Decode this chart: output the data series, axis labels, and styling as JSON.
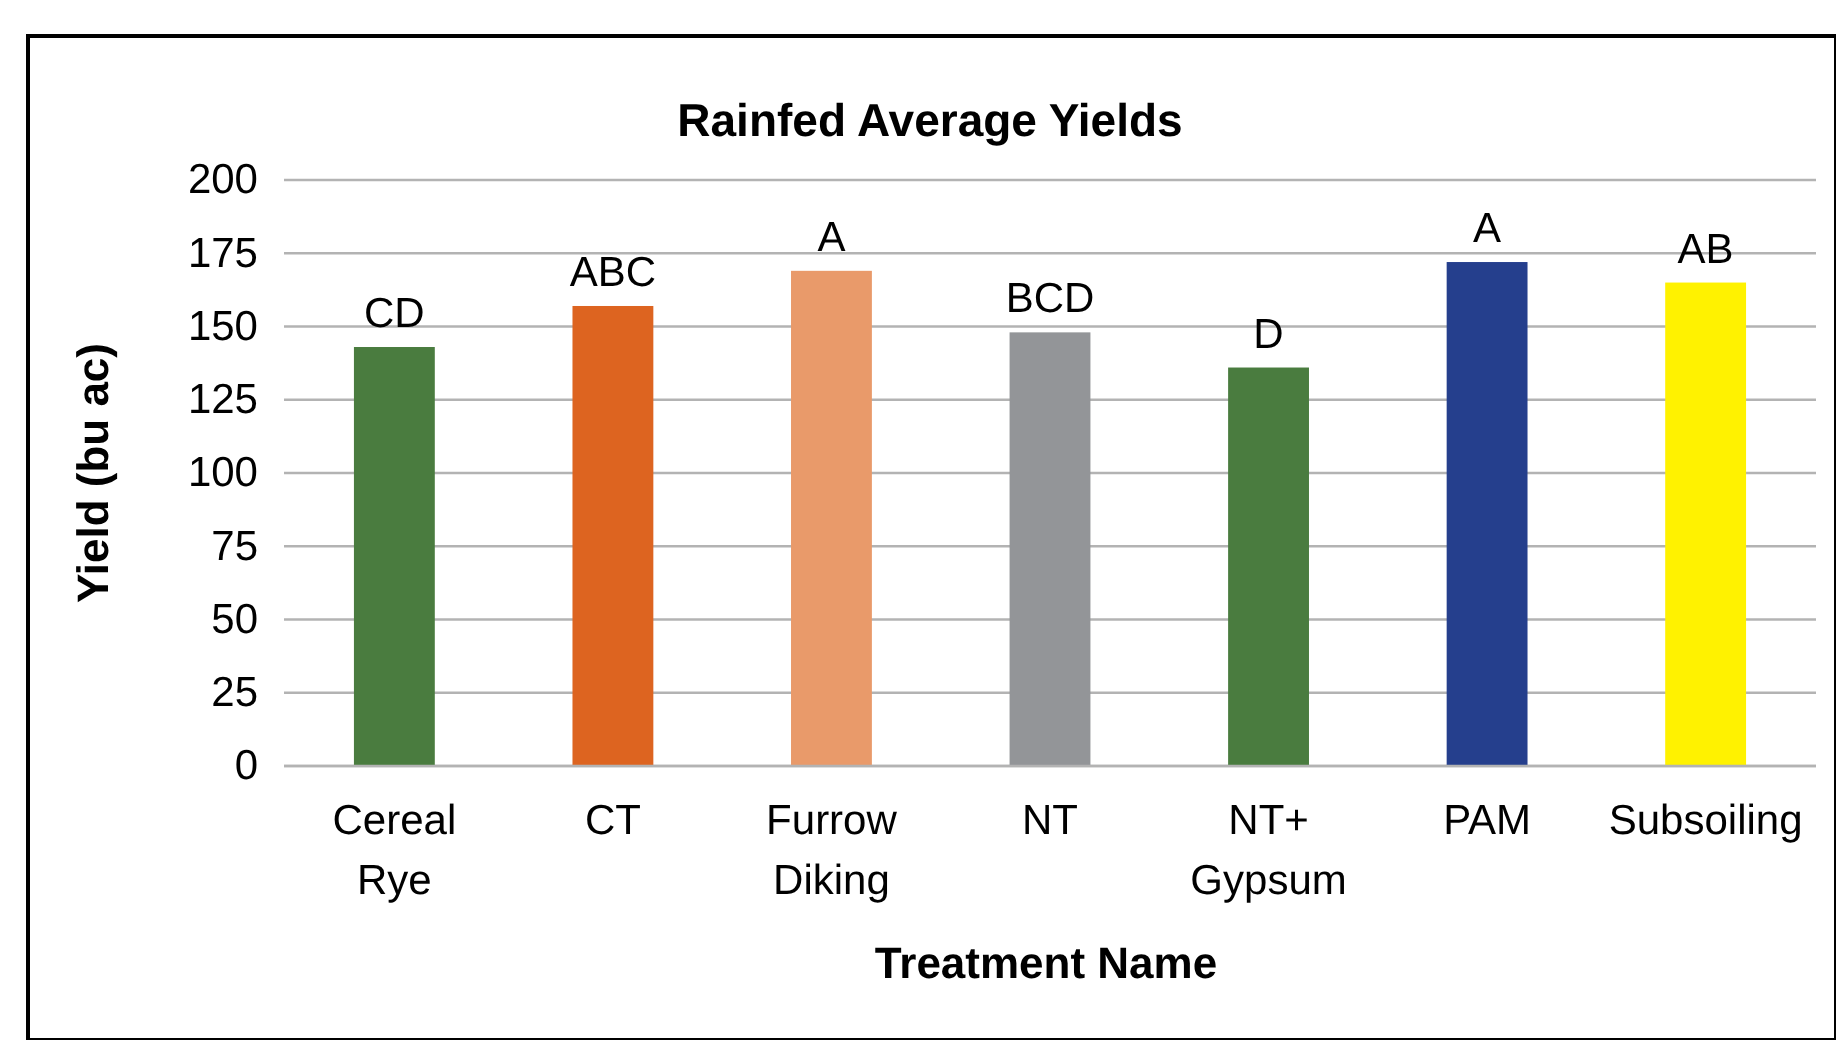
{
  "chart_data": {
    "type": "bar",
    "title": "Rainfed Average Yields",
    "xlabel": "Treatment Name",
    "ylabel": "Yield (bu ac)",
    "categories": [
      "Cereal Rye",
      "CT",
      "Furrow Diking",
      "NT",
      "NT+ Gypsum",
      "PAM",
      "Subsoiling"
    ],
    "values": [
      143,
      157,
      169,
      148,
      136,
      172,
      165
    ],
    "colors": [
      "#4a7c3f",
      "#dd6420",
      "#e99a6a",
      "#939598",
      "#4a7c3f",
      "#253f8d",
      "#fff200"
    ],
    "ylim": [
      0,
      200
    ],
    "yticks": [
      0,
      25,
      50,
      75,
      100,
      125,
      150,
      175,
      200
    ],
    "grid": "y",
    "annotations": [
      {
        "text": "CD",
        "x": "Cereal Rye",
        "y": 143
      },
      {
        "text": "ABC",
        "x": "CT",
        "y": 157
      },
      {
        "text": "A",
        "x": "Furrow Diking",
        "y": 169
      },
      {
        "text": "BCD",
        "x": "NT",
        "y": 148
      },
      {
        "text": "D",
        "x": "NT+ Gypsum",
        "y": 136
      },
      {
        "text": "A",
        "x": "PAM",
        "y": 172
      },
      {
        "text": "AB",
        "x": "Subsoiling",
        "y": 165
      }
    ]
  }
}
